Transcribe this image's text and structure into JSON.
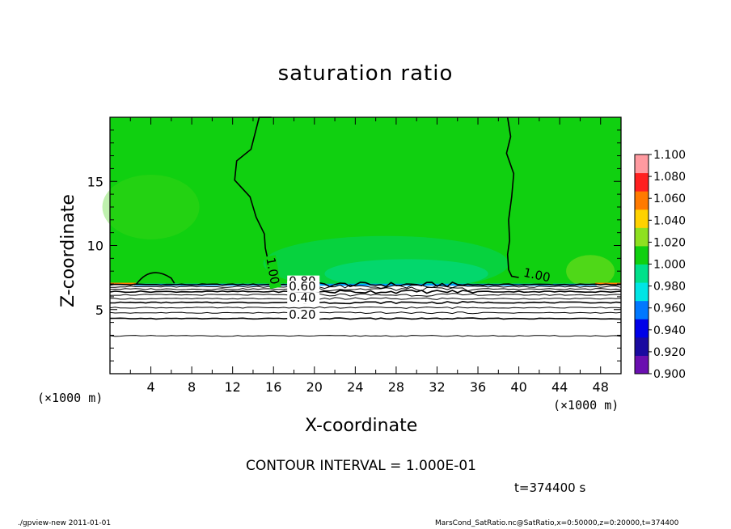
{
  "chart_data": {
    "type": "heatmap",
    "title": "saturation ratio",
    "xlabel": "X-coordinate",
    "ylabel": "Z-coordinate",
    "x_unit": "(×1000 m)",
    "y_unit": "(×1000 m)",
    "xlim": [
      0,
      50
    ],
    "ylim": [
      0,
      20
    ],
    "x_ticks": [
      "4",
      "8",
      "12",
      "16",
      "20",
      "24",
      "28",
      "32",
      "36",
      "40",
      "44",
      "48"
    ],
    "y_ticks": [
      "5",
      "10",
      "15"
    ],
    "colorbar": {
      "levels": [
        "0.900",
        "0.920",
        "0.940",
        "0.960",
        "0.980",
        "1.000",
        "1.020",
        "1.040",
        "1.060",
        "1.080",
        "1.100"
      ],
      "colors": [
        "#6a0fb0",
        "#1a0aa0",
        "#0000e8",
        "#0078ff",
        "#00e5e5",
        "#00e08a",
        "#10d010",
        "#8ee020",
        "#ffd200",
        "#ff7a00",
        "#ff2020",
        "#ff9aa0"
      ]
    },
    "contour_labels": [
      {
        "text": "1.00",
        "x": 15.3,
        "z": 9.0
      },
      {
        "text": "1.00",
        "x": 40.4,
        "z": 7.6
      },
      {
        "text": "0.80",
        "x": 17.5,
        "z": 6.9
      },
      {
        "text": "0.60",
        "x": 17.5,
        "z": 6.5
      },
      {
        "text": "0.40",
        "x": 17.5,
        "z": 5.6
      },
      {
        "text": "0.20",
        "x": 17.5,
        "z": 4.3
      }
    ],
    "contour_interval": "CONTOUR INTERVAL = 1.000E-01",
    "time": "t=374400 s"
  },
  "footer": {
    "left": "./gpview-new   2011-01-01",
    "right": "MarsCond_SatRatio.nc@SatRatio,x=0:50000,z=0:20000,t=374400"
  }
}
